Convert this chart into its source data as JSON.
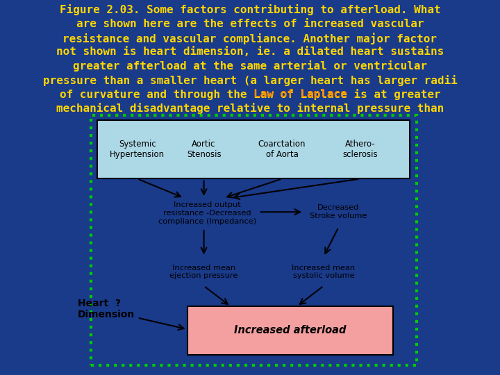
{
  "bg_color": "#1a3a8a",
  "title_lines": [
    "Figure 2.03. Some factors contributing to afterload. What",
    "are shown here are the effects of increased vascular",
    "resistance and vascular compliance. Another major factor",
    "not shown is heart dimension, ie. a dilated heart sustains",
    "greater afterload at the same arterial or ventricular",
    "pressure than a smaller heart (a larger heart has larger radii",
    "of curvature and through the Law of Laplace is at greater",
    "mechanical disadvantage relative to internal pressure than"
  ],
  "title_color": "#FFD700",
  "link_color": "#FF8C00",
  "link_text": "Law of Laplace",
  "diagram_bg": "#ffffff",
  "diagram_border": "#00cc00",
  "top_box_bg": "#add8e6",
  "bottom_box_bg": "#f4a0a0",
  "top_labels": [
    "Systemic\nHypertension",
    "Aortic\nStenosis",
    "Coarctation\nof Aorta",
    "Athero-\nsclerosis"
  ],
  "middle_left_text": "Increased output\nresistance -Decreased\ncompliance (Impedance)",
  "middle_right_text": "Decreased\nStroke volume",
  "lower_left_text": "Increased mean\nejection pressure",
  "lower_right_text": "Increased mean\nsystolic volume",
  "heart_text": "Heart  ?\nDimension",
  "bottom_text": "Increased afterload",
  "font_size_title": 11.5,
  "font_size_diagram": 9
}
